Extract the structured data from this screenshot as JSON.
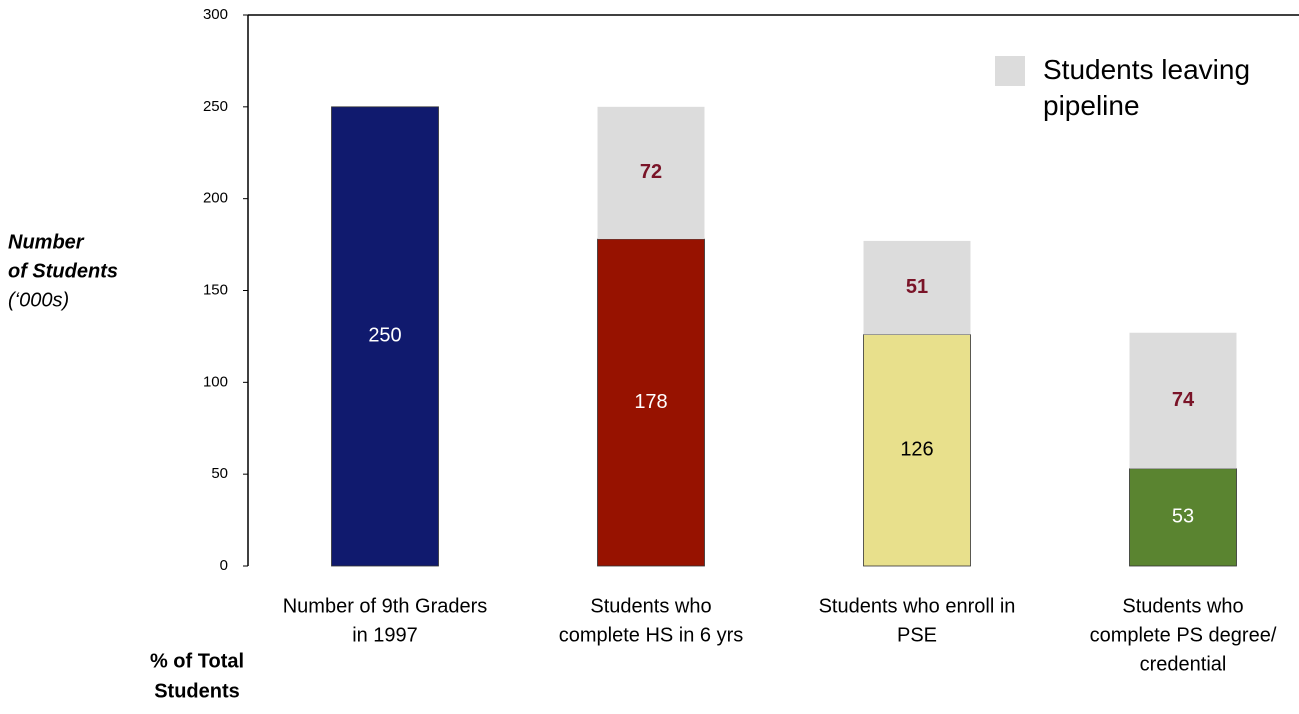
{
  "chart_data": {
    "type": "stacked_bar",
    "categories": [
      [
        "Number of 9th Graders",
        "in 1997"
      ],
      [
        "Students who",
        "complete HS in 6 yrs"
      ],
      [
        "Students who enroll in",
        "PSE"
      ],
      [
        "Students who",
        "complete PS degree/",
        "credential"
      ]
    ],
    "series": [
      {
        "colors": [
          "#101a6e",
          "#971200",
          "#e8e08c",
          "#5a8430"
        ],
        "label_colors": [
          "#ffffff",
          "#ffffff",
          "#000000",
          "#ffffff"
        ],
        "values": [
          250,
          178,
          126,
          53
        ]
      },
      {
        "name": "Students leaving pipeline",
        "color": "#dcdcdc",
        "label_color": "#7a1428",
        "values": [
          null,
          72,
          51,
          74
        ]
      }
    ],
    "ylim": [
      0,
      300
    ],
    "yticks": [
      0,
      50,
      100,
      150,
      200,
      250,
      300
    ],
    "ylabel": [
      "Number",
      "of Students",
      "(‘000s)"
    ],
    "footer_label": [
      "% of Total",
      "Students"
    ],
    "legend": "top-right"
  }
}
